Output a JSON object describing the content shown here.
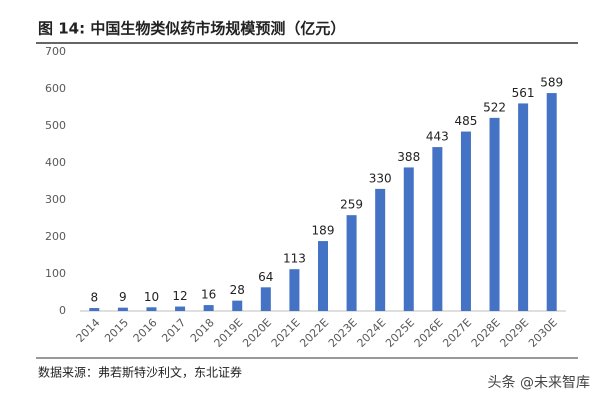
{
  "chart_data": {
    "type": "bar",
    "title": "图  14:  中国生物类似药市场规模预测（亿元）",
    "categories": [
      "2014",
      "2015",
      "2016",
      "2017",
      "2018",
      "2019E",
      "2020E",
      "2021E",
      "2022E",
      "2023E",
      "2024E",
      "2025E",
      "2026E",
      "2027E",
      "2028E",
      "2029E",
      "2030E"
    ],
    "values": [
      8,
      9,
      10,
      12,
      16,
      28,
      64,
      113,
      189,
      259,
      330,
      388,
      443,
      485,
      522,
      561,
      589
    ],
    "color": "#4472c4",
    "ylim": [
      0,
      700
    ],
    "yticks": [
      0,
      100,
      200,
      300,
      400,
      500,
      600,
      700
    ],
    "grid": false,
    "source": "数据来源：弗若斯特沙利文，东北证券",
    "watermark": "头条 @未来智库"
  }
}
